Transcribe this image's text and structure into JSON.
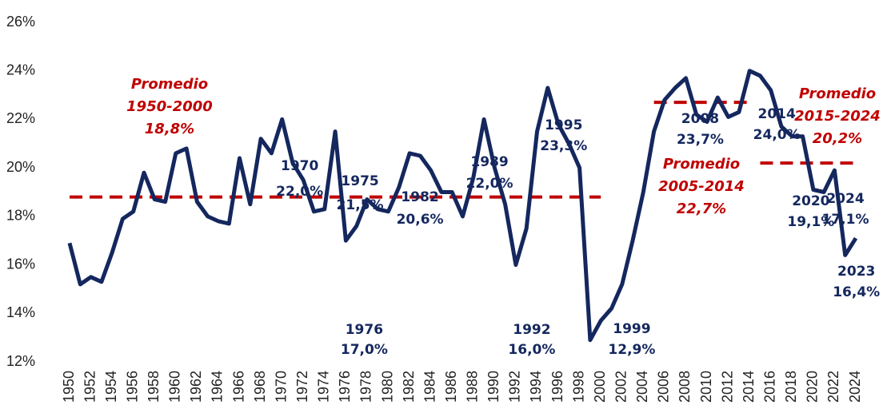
{
  "chart_data": {
    "type": "line",
    "x": [
      1950,
      1951,
      1952,
      1953,
      1954,
      1955,
      1956,
      1957,
      1958,
      1959,
      1960,
      1961,
      1962,
      1963,
      1964,
      1965,
      1966,
      1967,
      1968,
      1969,
      1970,
      1971,
      1972,
      1973,
      1974,
      1975,
      1976,
      1977,
      1978,
      1979,
      1980,
      1981,
      1982,
      1983,
      1984,
      1985,
      1986,
      1987,
      1988,
      1989,
      1990,
      1991,
      1992,
      1993,
      1994,
      1995,
      1996,
      1997,
      1998,
      1999,
      2000,
      2001,
      2002,
      2003,
      2004,
      2005,
      2006,
      2007,
      2008,
      2009,
      2010,
      2011,
      2012,
      2013,
      2014,
      2015,
      2016,
      2017,
      2018,
      2019,
      2020,
      2021,
      2022,
      2023,
      2024
    ],
    "values": [
      16.9,
      15.2,
      15.5,
      15.3,
      16.5,
      17.9,
      18.2,
      19.8,
      18.7,
      18.6,
      20.6,
      20.8,
      18.6,
      18.0,
      17.8,
      17.7,
      20.4,
      18.5,
      21.2,
      20.6,
      22.0,
      20.2,
      19.5,
      18.2,
      18.3,
      21.5,
      17.0,
      17.6,
      18.7,
      18.3,
      18.2,
      19.2,
      20.6,
      20.5,
      19.9,
      19.0,
      19.0,
      18.0,
      19.6,
      22.0,
      20.0,
      18.5,
      16.0,
      17.5,
      21.5,
      23.3,
      21.8,
      21.0,
      20.0,
      12.9,
      13.7,
      14.2,
      15.2,
      17.0,
      19.0,
      21.5,
      22.8,
      23.3,
      23.7,
      22.2,
      21.9,
      22.9,
      22.1,
      22.3,
      24.0,
      23.8,
      23.2,
      21.7,
      21.3,
      21.3,
      19.1,
      19.0,
      19.9,
      16.4,
      17.1
    ],
    "value_labels": [
      null,
      null,
      null,
      null,
      null,
      null,
      null,
      null,
      null,
      null,
      null,
      null,
      null,
      null,
      null,
      null,
      null,
      null,
      null,
      null,
      "22,0%",
      null,
      null,
      null,
      null,
      "21,5%",
      "17,0%",
      null,
      null,
      null,
      null,
      null,
      "20,6%",
      null,
      null,
      null,
      null,
      null,
      null,
      "22,0%",
      null,
      null,
      "16,0%",
      null,
      null,
      "23,3%",
      null,
      null,
      null,
      "12,9%",
      null,
      null,
      null,
      null,
      null,
      null,
      null,
      null,
      "23,7%",
      null,
      null,
      null,
      null,
      null,
      "24,0%",
      null,
      null,
      null,
      null,
      null,
      "19,1%",
      null,
      null,
      "16,4%",
      "17,1%"
    ],
    "color": "#14275e",
    "averages": [
      {
        "name": "Promedio",
        "period": "1950-2000",
        "value": 18.8,
        "value_label": "18,8%",
        "start": 1950,
        "end": 2000
      },
      {
        "name": "Promedio",
        "period": "2005-2014",
        "value": 22.7,
        "value_label": "22,7%",
        "start": 2005,
        "end": 2014
      },
      {
        "name": "Promedio",
        "period": "2015-2024",
        "value": 20.2,
        "value_label": "20,2%",
        "start": 2015,
        "end": 2024
      }
    ],
    "average_color": "#c00000",
    "xlim": [
      1950,
      2024
    ],
    "xticks": [
      1950,
      1952,
      1954,
      1956,
      1958,
      1960,
      1962,
      1964,
      1966,
      1968,
      1970,
      1972,
      1974,
      1976,
      1978,
      1980,
      1982,
      1984,
      1986,
      1988,
      1990,
      1992,
      1994,
      1996,
      1998,
      2000,
      2002,
      2004,
      2006,
      2008,
      2010,
      2012,
      2014,
      2016,
      2018,
      2020,
      2022,
      2024
    ],
    "ylim": [
      12,
      26
    ],
    "yticks": [
      {
        "value": 12,
        "label": "12%"
      },
      {
        "value": 14,
        "label": "14%"
      },
      {
        "value": 16,
        "label": "16%"
      },
      {
        "value": 18,
        "label": "18%"
      },
      {
        "value": 20,
        "label": "20%"
      },
      {
        "value": 22,
        "label": "22%"
      },
      {
        "value": 24,
        "label": "24%"
      },
      {
        "value": 26,
        "label": "26%"
      }
    ],
    "grid": false
  }
}
